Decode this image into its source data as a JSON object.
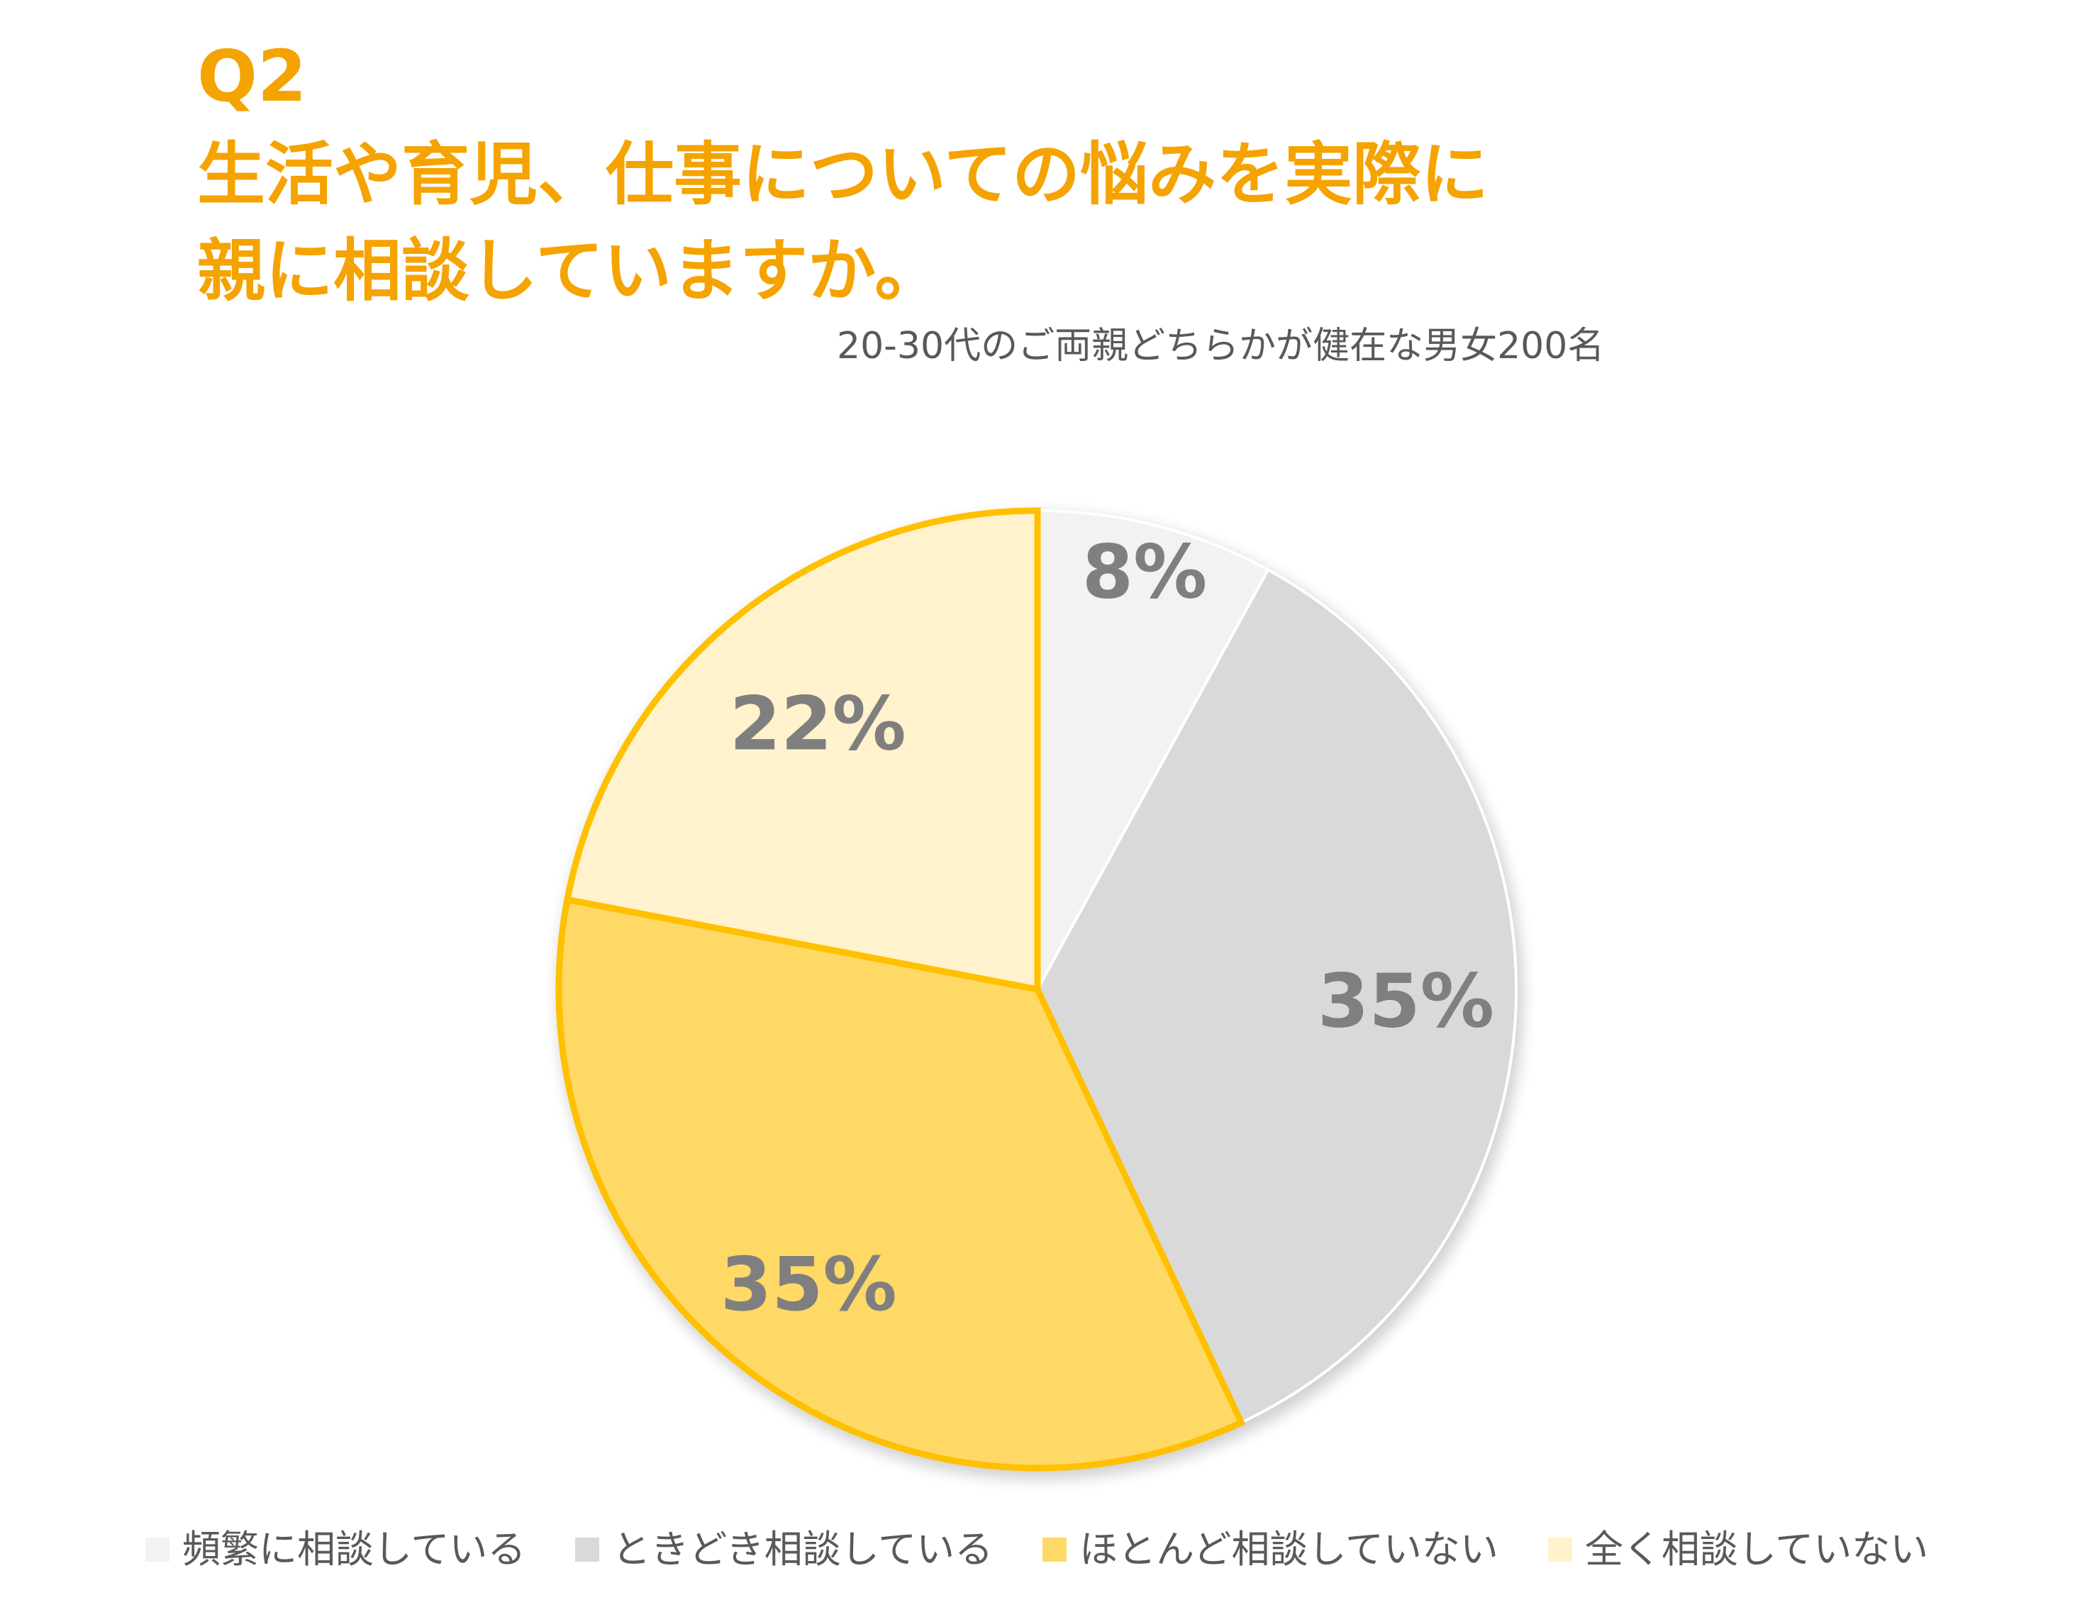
{
  "header": {
    "question_number": "Q2",
    "title_line1": "生活や育児、仕事についての悩みを実際に",
    "title_line2": "親に相談していますか。",
    "subtitle": "20-30代のご両親どちらかが健在な男女200名"
  },
  "colors": {
    "title": "#F5A300",
    "subtitle": "#595959",
    "label": "#7F7F7F",
    "highlight_outline": "#FFC000"
  },
  "chart_data": {
    "type": "pie",
    "categories": [
      "頻繁に相談している",
      "ときどき相談している",
      "ほとんど相談していない",
      "全く相談していない"
    ],
    "values": [
      8,
      35,
      35,
      22
    ],
    "value_labels": [
      "8%",
      "35%",
      "35%",
      "22%"
    ],
    "colors": [
      "#F2F2F2",
      "#D9D9D9",
      "#FFD966",
      "#FFF2CC"
    ],
    "highlighted": [
      false,
      false,
      true,
      true
    ],
    "start_angle": "12 o'clock",
    "direction": "clockwise",
    "legend_position": "bottom"
  }
}
